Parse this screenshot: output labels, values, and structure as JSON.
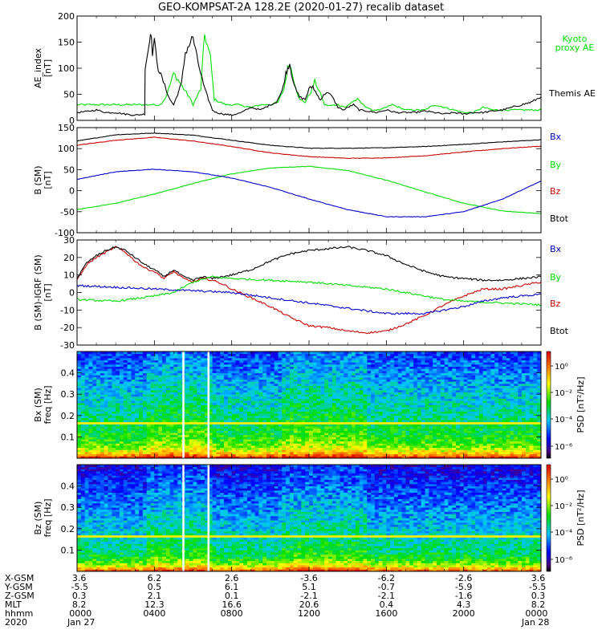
{
  "title": "GEO-KOMPSAT-2A 128.2E (2020-01-27) recalib dataset",
  "colors": {
    "black": "#000000",
    "red": "#cc0000",
    "green": "#00dd00",
    "blue": "#0000cc"
  },
  "chart_data": [
    {
      "type": "line",
      "id": "ae",
      "ylabel_lines": [
        "AE_index",
        "[nT]"
      ],
      "ylim": [
        0,
        200
      ],
      "yticks": [
        0,
        50,
        100,
        150,
        200
      ],
      "legend": [
        {
          "name": "Kyoto proxy AE",
          "lines": [
            "Kyoto",
            "proxy AE"
          ],
          "color": "#00dd00"
        },
        {
          "name": "Themis AE",
          "lines": [
            "Themis AE"
          ],
          "color": "#000000"
        }
      ],
      "series": [
        {
          "name": "Kyoto proxy AE",
          "color": "#00dd00",
          "x": [
            0,
            3.5,
            3.5,
            4.3,
            4.6,
            5.0,
            5.8,
            6.0,
            6.4,
            6.6,
            6.9,
            7.1,
            7.7,
            8.3,
            9.0,
            9.5,
            10.0,
            10.4,
            10.7,
            10.9,
            11.0,
            11.2,
            11.5,
            11.8,
            12.1,
            12.3,
            12.6,
            12.8,
            13.1,
            13.5,
            13.9,
            14.2,
            14.5,
            14.8,
            15.2,
            15.7,
            16.0,
            16.3,
            17.0,
            17.5,
            18.0,
            18.5,
            19.0,
            20.0,
            20.5,
            21.0,
            21.5,
            22.0,
            22.5,
            23.0,
            24.0
          ],
          "y": [
            30,
            30,
            30,
            30,
            45,
            90,
            45,
            30,
            60,
            165,
            120,
            40,
            30,
            30,
            25,
            30,
            30,
            35,
            60,
            100,
            110,
            80,
            40,
            35,
            55,
            75,
            50,
            30,
            28,
            30,
            25,
            35,
            40,
            30,
            20,
            20,
            25,
            30,
            20,
            20,
            20,
            30,
            25,
            15,
            15,
            25,
            20,
            20,
            20,
            20,
            20
          ]
        },
        {
          "name": "Themis AE",
          "color": "#000000",
          "x": [
            0,
            0.5,
            1.0,
            1.5,
            2.0,
            2.5,
            3.0,
            3.5,
            3.52,
            3.7,
            3.8,
            3.9,
            4.0,
            4.2,
            4.4,
            4.6,
            4.8,
            5.0,
            5.2,
            5.4,
            5.6,
            5.8,
            6.0,
            6.2,
            6.4,
            6.6,
            6.8,
            7.0,
            7.2,
            7.6,
            8.0,
            8.5,
            9.0,
            9.5,
            10.0,
            10.3,
            10.6,
            10.8,
            10.9,
            11.0,
            11.1,
            11.3,
            11.5,
            11.8,
            12.0,
            12.2,
            12.4,
            12.6,
            12.9,
            13.2,
            13.5,
            13.8,
            14.0,
            14.3,
            14.6,
            15.0,
            15.5,
            16.0,
            16.5,
            17.0,
            17.5,
            18.0,
            18.5,
            19.0,
            19.5,
            20.0,
            20.5,
            21.0,
            21.5,
            22.0,
            22.5,
            23.0,
            23.5,
            24.0
          ],
          "y": [
            15,
            17,
            20,
            15,
            15,
            12,
            10,
            12,
            100,
            140,
            175,
            130,
            150,
            100,
            80,
            60,
            40,
            30,
            50,
            70,
            130,
            145,
            160,
            120,
            90,
            60,
            40,
            20,
            15,
            12,
            10,
            15,
            25,
            20,
            30,
            35,
            55,
            90,
            100,
            110,
            90,
            60,
            45,
            40,
            60,
            65,
            50,
            40,
            55,
            45,
            25,
            20,
            25,
            30,
            20,
            18,
            15,
            20,
            15,
            15,
            15,
            18,
            15,
            12,
            15,
            12,
            15,
            15,
            18,
            20,
            25,
            30,
            35,
            45
          ]
        }
      ]
    },
    {
      "type": "line",
      "id": "bsm",
      "ylabel_lines": [
        "B (SM)",
        "[nT]"
      ],
      "ylim": [
        -100,
        150
      ],
      "yticks": [
        -100,
        -50,
        0,
        50,
        100,
        150
      ],
      "legend": [
        {
          "name": "Bx",
          "lines": [
            "Bx"
          ],
          "color": "#0000cc"
        },
        {
          "name": "By",
          "lines": [
            "By"
          ],
          "color": "#00dd00"
        },
        {
          "name": "Bz",
          "lines": [
            "Bz"
          ],
          "color": "#cc0000"
        },
        {
          "name": "Btot",
          "lines": [
            "Btot"
          ],
          "color": "#000000"
        }
      ],
      "series": [
        {
          "name": "Btot",
          "color": "#000000",
          "x": [
            0,
            2,
            4,
            6,
            8,
            10,
            12,
            14,
            16,
            18,
            20,
            22,
            24
          ],
          "y": [
            118,
            133,
            137,
            132,
            120,
            108,
            101,
            101,
            102,
            105,
            110,
            116,
            121
          ]
        },
        {
          "name": "Bz",
          "color": "#cc0000",
          "x": [
            0,
            2,
            4,
            6,
            8,
            10,
            12,
            14,
            16,
            18,
            20,
            22,
            24
          ],
          "y": [
            108,
            120,
            127,
            118,
            105,
            90,
            81,
            77,
            78,
            83,
            92,
            100,
            106
          ]
        },
        {
          "name": "By",
          "color": "#00dd00",
          "x": [
            0,
            2,
            4,
            6,
            8,
            10,
            12,
            14,
            16,
            18,
            20,
            22,
            24
          ],
          "y": [
            -45,
            -30,
            -8,
            17,
            40,
            54,
            58,
            48,
            25,
            -3,
            -30,
            -48,
            -55
          ]
        },
        {
          "name": "Bx",
          "color": "#0000cc",
          "x": [
            0,
            2,
            4,
            6,
            8,
            10,
            12,
            14,
            16,
            18,
            20,
            22,
            24
          ],
          "y": [
            27,
            45,
            51,
            45,
            30,
            8,
            -20,
            -45,
            -62,
            -62,
            -50,
            -20,
            23
          ]
        }
      ]
    },
    {
      "type": "line",
      "id": "bdiff",
      "ylabel_lines": [
        "B (SM)-IGRF (SM)",
        "[nT]"
      ],
      "ylim": [
        -30,
        30
      ],
      "yticks": [
        -30,
        -20,
        -10,
        0,
        10,
        20,
        30
      ],
      "legend": [
        {
          "name": "Bx",
          "lines": [
            "Bx"
          ],
          "color": "#0000cc"
        },
        {
          "name": "By",
          "lines": [
            "By"
          ],
          "color": "#00dd00"
        },
        {
          "name": "Bz",
          "lines": [
            "Bz"
          ],
          "color": "#cc0000"
        },
        {
          "name": "Btot",
          "lines": [
            "Btot"
          ],
          "color": "#000000"
        }
      ],
      "series": [
        {
          "name": "Bz",
          "color": "#cc0000",
          "x": [
            0,
            0.5,
            1,
            1.5,
            2,
            2.5,
            3,
            3.5,
            4,
            4.5,
            5,
            5.5,
            6,
            6.5,
            7,
            7.5,
            8,
            9,
            10,
            11,
            12,
            13,
            14,
            15,
            16,
            17,
            18,
            19,
            20,
            21,
            22,
            23,
            24
          ],
          "y": [
            7,
            16,
            20,
            23,
            26,
            23,
            18,
            14,
            12,
            8,
            12,
            8,
            6,
            8,
            7,
            5,
            2,
            -3,
            -8,
            -14,
            -19,
            -20,
            -22,
            -23,
            -22,
            -18,
            -13,
            -7,
            -2,
            2,
            2,
            4,
            6
          ]
        },
        {
          "name": "Btot",
          "color": "#000000",
          "x": [
            0,
            0.5,
            1,
            1.5,
            2,
            2.5,
            3,
            3.5,
            4,
            4.5,
            5,
            5.5,
            6,
            6.5,
            7,
            7.5,
            8,
            9,
            10,
            11,
            12,
            13,
            14,
            15,
            16,
            17,
            18,
            19,
            20,
            21,
            22,
            23,
            24
          ],
          "y": [
            8,
            17,
            21,
            24,
            26,
            24,
            20,
            16,
            13,
            9,
            13,
            9,
            7,
            9,
            8,
            9,
            10,
            13,
            18,
            22,
            24,
            25,
            26,
            24,
            21,
            16,
            12,
            9,
            8,
            7,
            7,
            8,
            9
          ]
        },
        {
          "name": "By",
          "color": "#00dd00",
          "x": [
            0,
            2,
            4,
            5,
            6,
            7,
            8,
            10,
            12,
            14,
            15,
            16,
            18,
            19,
            20,
            22,
            24
          ],
          "y": [
            -4,
            -5,
            -2,
            0,
            6,
            9,
            8,
            7,
            6,
            4,
            3,
            2,
            -2,
            -4,
            -5,
            -6,
            -7
          ]
        },
        {
          "name": "Bx",
          "color": "#0000cc",
          "x": [
            0,
            2,
            4,
            6,
            8,
            10,
            12,
            14,
            16,
            18,
            20,
            21,
            22,
            24
          ],
          "y": [
            4,
            3,
            2,
            1,
            0,
            -3,
            -6,
            -9,
            -12,
            -12,
            -8,
            -5,
            -3,
            -1
          ]
        }
      ]
    },
    {
      "type": "heatmap",
      "id": "spec_bx",
      "ylabel_lines": [
        "Bx (SM)",
        "freq [Hz]"
      ],
      "ylim": [
        0,
        0.5
      ],
      "yticks": [
        0.1,
        0.2,
        0.3,
        0.4
      ],
      "colorbar_label": "PSD [nT²/Hz]",
      "colorbar_ticks": [
        "10⁰",
        "10⁻²",
        "10⁻⁴",
        "10⁻⁶"
      ],
      "gaps_hours": [
        5.5,
        6.8
      ],
      "line_freq": 0.165
    },
    {
      "type": "heatmap",
      "id": "spec_bz",
      "ylabel_lines": [
        "Bz (SM)",
        "freq [Hz]"
      ],
      "ylim": [
        0,
        0.5
      ],
      "yticks": [
        0.1,
        0.2,
        0.3,
        0.4
      ],
      "colorbar_label": "PSD [nT²/Hz]",
      "colorbar_ticks": [
        "10⁰",
        "10⁻²",
        "10⁻⁴",
        "10⁻⁶"
      ],
      "gaps_hours": [
        5.5,
        6.8
      ],
      "line_freq": 0.165
    }
  ],
  "time_axis": {
    "xlim_hours": [
      0,
      24
    ],
    "tick_hours": [
      0,
      4,
      8,
      12,
      16,
      20,
      24
    ]
  },
  "ephemeris": {
    "labels": [
      "X-GSM",
      "Y-GSM",
      "Z-GSM",
      "MLT",
      "hhmm",
      "2020"
    ],
    "columns": [
      [
        "3.6",
        "-5.5",
        "0.3",
        "8.2",
        "0000",
        "Jan 27"
      ],
      [
        "6.2",
        "0.5",
        "2.1",
        "12.3",
        "0400",
        ""
      ],
      [
        "2.6",
        "6.1",
        "0.1",
        "16.6",
        "0800",
        ""
      ],
      [
        "-3.6",
        "5.1",
        "-2.1",
        "20.6",
        "1200",
        ""
      ],
      [
        "-6.2",
        "-0.7",
        "-2.1",
        "0.4",
        "1600",
        ""
      ],
      [
        "-2.6",
        "-5.9",
        "-1.6",
        "4.3",
        "2000",
        ""
      ],
      [
        "3.6",
        "-5.5",
        "0.3",
        "8.2",
        "0000",
        "Jan 28"
      ]
    ]
  }
}
